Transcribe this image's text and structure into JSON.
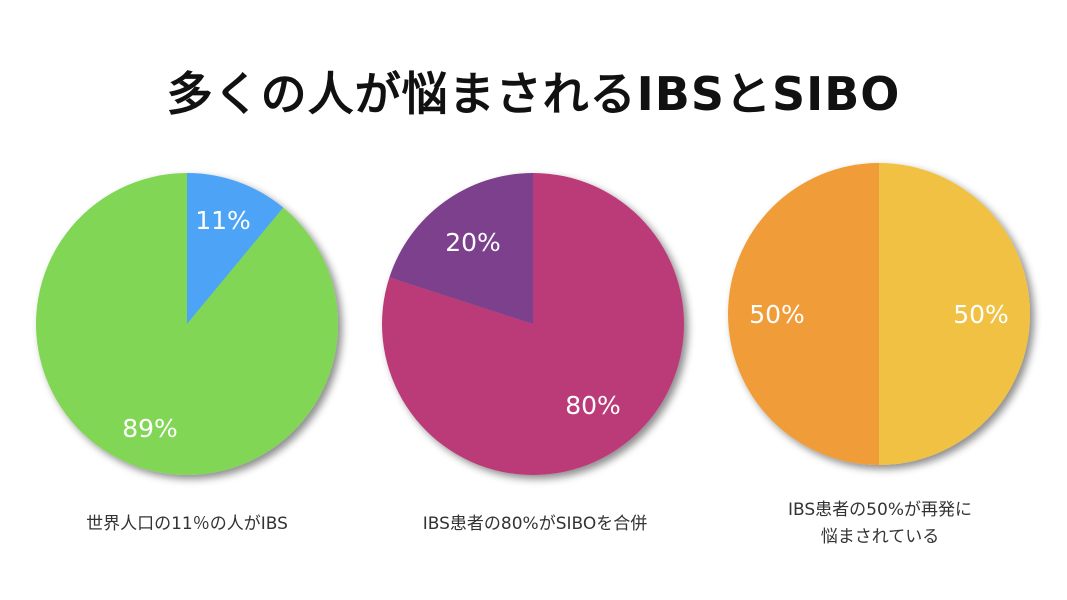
{
  "title": "多くの人が悩まされるIBSとSIBO",
  "chart_data": [
    {
      "type": "pie",
      "slices": [
        {
          "label": "11%",
          "value": 11,
          "color": "#4da3f5"
        },
        {
          "label": "89%",
          "value": 89,
          "color": "#82d656"
        }
      ],
      "caption": [
        "世界人口の11％の人がIBS"
      ]
    },
    {
      "type": "pie",
      "slices": [
        {
          "label": "80%",
          "value": 80,
          "color": "#bb3a79"
        },
        {
          "label": "20%",
          "value": 20,
          "color": "#7c3f8c"
        }
      ],
      "caption": [
        "IBS患者の80%がSIBOを合併"
      ]
    },
    {
      "type": "pie",
      "slices": [
        {
          "label": "50%",
          "value": 50,
          "color": "#f0c142"
        },
        {
          "label": "50%",
          "value": 50,
          "color": "#f09c38"
        }
      ],
      "caption": [
        "IBS患者の50%が再発に",
        "悩まされている"
      ]
    }
  ]
}
